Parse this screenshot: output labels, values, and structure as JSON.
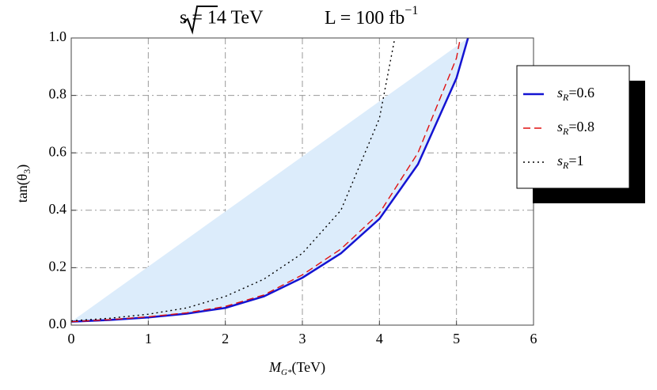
{
  "chart_data": {
    "type": "line",
    "title": "√s = 14 TeV",
    "title_right": "L = 100 fb",
    "title_right_exponent": "−1",
    "x_label": "M",
    "x_label_sub": "G*",
    "x_label_unit": "(TeV)",
    "y_label": "tan(θ",
    "y_label_sub": "3",
    "y_label_end": ")",
    "xlim": [
      0,
      6
    ],
    "xticks": [
      0,
      1,
      2,
      3,
      4,
      5,
      6
    ],
    "ylim": [
      0,
      1
    ],
    "yticks": [
      {
        "value": 0,
        "label": "0.0"
      },
      0.2,
      0.4,
      0.6,
      0.8,
      {
        "value": 1,
        "label": "1.0"
      }
    ],
    "grid": true,
    "fill_color": "#dcecfb",
    "legend": "upper right",
    "series": [
      {
        "name": "sR=0.6",
        "color": "#1414d2",
        "dash": "solid",
        "x": [
          0,
          0.5,
          1,
          1.5,
          2,
          2.5,
          3,
          3.5,
          4,
          4.5,
          5,
          5.15
        ],
        "values": [
          0.012,
          0.018,
          0.027,
          0.04,
          0.06,
          0.1,
          0.165,
          0.25,
          0.37,
          0.56,
          0.86,
          1.0
        ]
      },
      {
        "name": "sR=0.8",
        "color": "#e01010",
        "dash": "dashed",
        "x": [
          0,
          0.5,
          1,
          1.5,
          2,
          2.5,
          3,
          3.5,
          4,
          4.5,
          5,
          5.05
        ],
        "values": [
          0.012,
          0.019,
          0.029,
          0.043,
          0.065,
          0.105,
          0.175,
          0.265,
          0.39,
          0.6,
          0.93,
          1.0
        ]
      },
      {
        "name": "sR=1",
        "color": "#000000",
        "dash": "dotted",
        "x": [
          0,
          0.5,
          1,
          1.5,
          2,
          2.5,
          3,
          3.5,
          4,
          4.2
        ],
        "values": [
          0.015,
          0.024,
          0.038,
          0.06,
          0.1,
          0.16,
          0.25,
          0.4,
          0.72,
          1.0
        ]
      }
    ]
  }
}
